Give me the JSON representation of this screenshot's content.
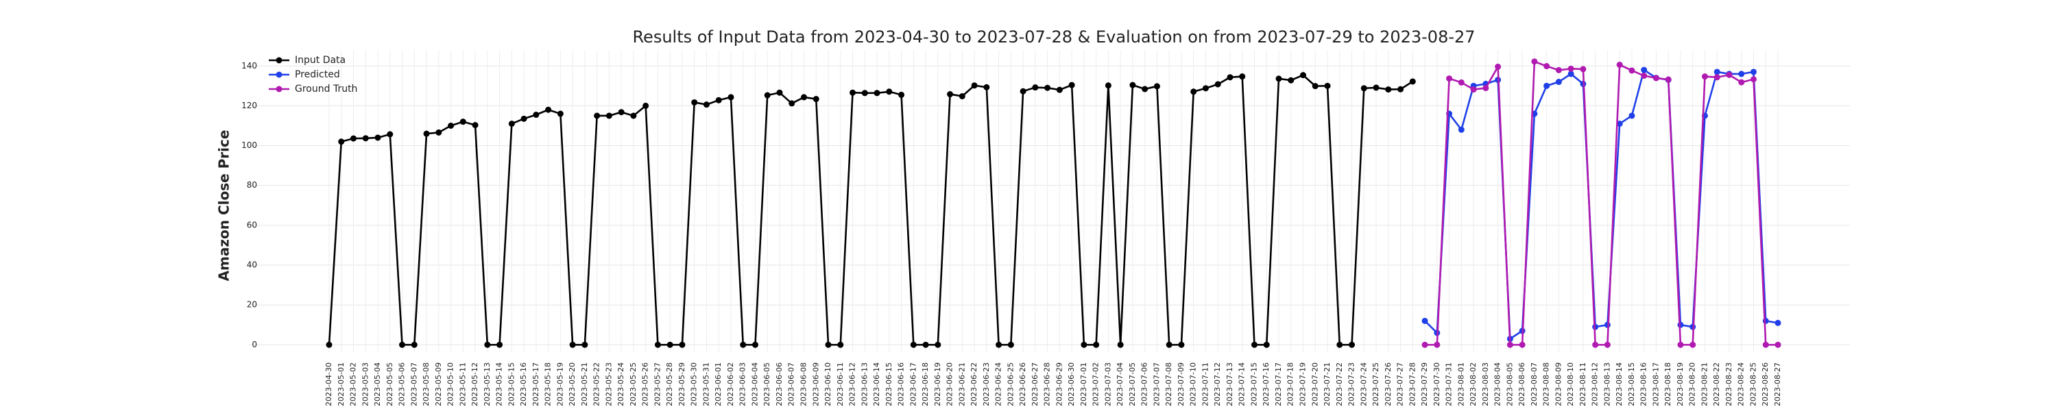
{
  "chart_data": {
    "type": "line",
    "title": "Results of Input Data from 2023-04-30 to 2023-07-28 & Evaluation on from 2023-07-29 to 2023-08-27",
    "y_label": "Amazon Close Price",
    "categories": [
      "2023-04-30",
      "2023-05-01",
      "2023-05-02",
      "2023-05-03",
      "2023-05-04",
      "2023-05-05",
      "2023-05-06",
      "2023-05-07",
      "2023-05-08",
      "2023-05-09",
      "2023-05-10",
      "2023-05-11",
      "2023-05-12",
      "2023-05-13",
      "2023-05-14",
      "2023-05-15",
      "2023-05-16",
      "2023-05-17",
      "2023-05-18",
      "2023-05-19",
      "2023-05-20",
      "2023-05-21",
      "2023-05-22",
      "2023-05-23",
      "2023-05-24",
      "2023-05-25",
      "2023-05-26",
      "2023-05-27",
      "2023-05-28",
      "2023-05-29",
      "2023-05-30",
      "2023-05-31",
      "2023-06-01",
      "2023-06-02",
      "2023-06-03",
      "2023-06-04",
      "2023-06-05",
      "2023-06-06",
      "2023-06-07",
      "2023-06-08",
      "2023-06-09",
      "2023-06-10",
      "2023-06-11",
      "2023-06-12",
      "2023-06-13",
      "2023-06-14",
      "2023-06-15",
      "2023-06-16",
      "2023-06-17",
      "2023-06-18",
      "2023-06-19",
      "2023-06-20",
      "2023-06-21",
      "2023-06-22",
      "2023-06-23",
      "2023-06-24",
      "2023-06-25",
      "2023-06-26",
      "2023-06-27",
      "2023-06-28",
      "2023-06-29",
      "2023-06-30",
      "2023-07-01",
      "2023-07-02",
      "2023-07-03",
      "2023-07-04",
      "2023-07-05",
      "2023-07-06",
      "2023-07-07",
      "2023-07-08",
      "2023-07-09",
      "2023-07-10",
      "2023-07-11",
      "2023-07-12",
      "2023-07-13",
      "2023-07-14",
      "2023-07-15",
      "2023-07-16",
      "2023-07-17",
      "2023-07-18",
      "2023-07-19",
      "2023-07-20",
      "2023-07-21",
      "2023-07-22",
      "2023-07-23",
      "2023-07-24",
      "2023-07-25",
      "2023-07-26",
      "2023-07-27",
      "2023-07-28",
      "2023-07-29",
      "2023-07-30",
      "2023-07-31",
      "2023-08-01",
      "2023-08-02",
      "2023-08-03",
      "2023-08-04",
      "2023-08-05",
      "2023-08-06",
      "2023-08-07",
      "2023-08-08",
      "2023-08-09",
      "2023-08-10",
      "2023-08-11",
      "2023-08-12",
      "2023-08-13",
      "2023-08-14",
      "2023-08-15",
      "2023-08-16",
      "2023-08-17",
      "2023-08-18",
      "2023-08-19",
      "2023-08-20",
      "2023-08-21",
      "2023-08-22",
      "2023-08-23",
      "2023-08-24",
      "2023-08-25",
      "2023-08-26",
      "2023-08-27"
    ],
    "series": [
      {
        "name": "Input Data",
        "color": "#000000",
        "values": [
          0,
          102,
          103.6,
          103.7,
          104,
          105.7,
          0,
          0,
          106,
          106.6,
          110,
          112,
          110.3,
          0,
          0,
          111,
          113.5,
          115.5,
          118,
          116,
          0,
          0,
          115,
          115,
          116.8,
          115,
          120,
          0,
          0,
          0,
          121.7,
          120.6,
          122.8,
          124.3,
          0,
          0,
          125.3,
          126.6,
          121.2,
          124.3,
          123.4,
          0,
          0,
          126.6,
          126.4,
          126.4,
          127.1,
          125.5,
          0,
          0,
          0,
          125.8,
          124.8,
          130.2,
          129.3,
          0,
          0,
          127.3,
          129.2,
          129,
          128,
          130.4,
          0,
          0,
          130.2,
          0,
          130.4,
          128.4,
          129.8,
          0,
          0,
          127.1,
          128.8,
          130.8,
          134.3,
          134.7,
          0,
          0,
          133.6,
          132.8,
          135.4,
          129.9,
          130,
          0,
          0,
          128.8,
          129.1,
          128.2,
          128.3,
          132.2,
          null,
          null,
          null,
          null,
          null,
          null,
          null,
          null,
          null,
          null,
          null,
          null,
          null,
          null,
          null,
          null,
          null,
          null,
          null,
          null,
          null,
          null,
          null,
          null,
          null,
          null,
          null,
          null,
          null,
          null
        ]
      },
      {
        "name": "Predicted",
        "color": "#1f3fe8",
        "values": [
          null,
          null,
          null,
          null,
          null,
          null,
          null,
          null,
          null,
          null,
          null,
          null,
          null,
          null,
          null,
          null,
          null,
          null,
          null,
          null,
          null,
          null,
          null,
          null,
          null,
          null,
          null,
          null,
          null,
          null,
          null,
          null,
          null,
          null,
          null,
          null,
          null,
          null,
          null,
          null,
          null,
          null,
          null,
          null,
          null,
          null,
          null,
          null,
          null,
          null,
          null,
          null,
          null,
          null,
          null,
          null,
          null,
          null,
          null,
          null,
          null,
          null,
          null,
          null,
          null,
          null,
          null,
          null,
          null,
          null,
          null,
          null,
          null,
          null,
          null,
          null,
          null,
          null,
          null,
          null,
          null,
          null,
          null,
          null,
          null,
          null,
          null,
          null,
          null,
          null,
          12,
          6,
          116,
          108,
          130,
          131,
          133,
          3,
          7,
          116,
          130,
          132,
          136,
          131,
          9,
          10,
          111,
          115,
          138,
          134,
          133,
          10,
          9,
          115,
          137,
          136,
          136,
          137,
          12,
          11
        ]
      },
      {
        "name": "Ground Truth",
        "color": "#b01ab0",
        "values": [
          null,
          null,
          null,
          null,
          null,
          null,
          null,
          null,
          null,
          null,
          null,
          null,
          null,
          null,
          null,
          null,
          null,
          null,
          null,
          null,
          null,
          null,
          null,
          null,
          null,
          null,
          null,
          null,
          null,
          null,
          null,
          null,
          null,
          null,
          null,
          null,
          null,
          null,
          null,
          null,
          null,
          null,
          null,
          null,
          null,
          null,
          null,
          null,
          null,
          null,
          null,
          null,
          null,
          null,
          null,
          null,
          null,
          null,
          null,
          null,
          null,
          null,
          null,
          null,
          null,
          null,
          null,
          null,
          null,
          null,
          null,
          null,
          null,
          null,
          null,
          null,
          null,
          null,
          null,
          null,
          null,
          null,
          null,
          null,
          null,
          null,
          null,
          null,
          null,
          null,
          0,
          0,
          133.7,
          131.7,
          128.2,
          128.9,
          139.6,
          0,
          0,
          142.2,
          139.9,
          137.9,
          138.6,
          138.4,
          0,
          0,
          140.6,
          137.7,
          135.1,
          133.9,
          133.2,
          0,
          0,
          134.7,
          134.3,
          135.5,
          131.8,
          133.3,
          0,
          0
        ]
      }
    ],
    "ylim": [
      -4,
      148
    ],
    "yticks": [
      0,
      20,
      40,
      60,
      80,
      100,
      120,
      140
    ],
    "grid": true,
    "legend": "upper left"
  }
}
